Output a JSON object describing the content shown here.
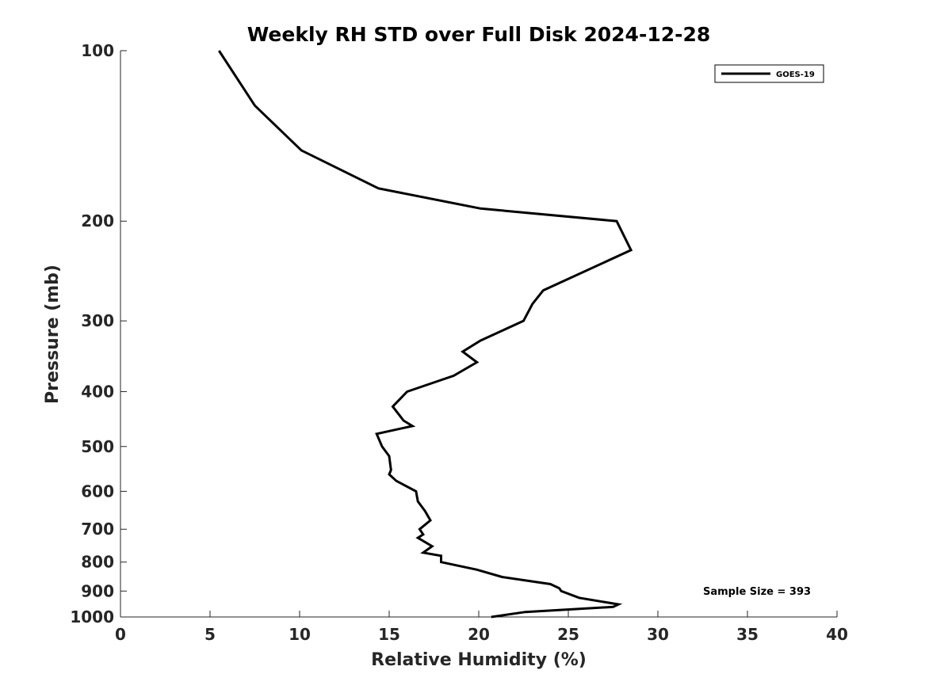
{
  "chart_data": {
    "type": "line",
    "title": "Weekly RH STD over Full Disk 2024-12-28",
    "xlabel": "Relative Humidity (%)",
    "ylabel": "Pressure (mb)",
    "xlim": [
      0,
      40
    ],
    "ylim": [
      100,
      1000
    ],
    "yscale": "log",
    "yreversed": true,
    "grid": false,
    "x_ticks": [
      0,
      5,
      10,
      15,
      20,
      25,
      30,
      35,
      40
    ],
    "x_tick_labels": [
      "0",
      "5",
      "10",
      "15",
      "20",
      "25",
      "30",
      "35",
      "40"
    ],
    "y_ticks": [
      100,
      200,
      300,
      400,
      500,
      600,
      700,
      800,
      900,
      1000
    ],
    "y_tick_labels": [
      "100",
      "200",
      "300",
      "400",
      "500",
      "600",
      "700",
      "800",
      "900",
      "1000"
    ],
    "legend": {
      "position": "top-right",
      "entries": [
        "GOES-19"
      ]
    },
    "annotation": "Sample Size = 393",
    "series": [
      {
        "name": "GOES-19",
        "color": "#000000",
        "points": [
          [
            5.5,
            100
          ],
          [
            7.5,
            125
          ],
          [
            10.1,
            150
          ],
          [
            14.4,
            175
          ],
          [
            20.1,
            190
          ],
          [
            27.7,
            200
          ],
          [
            28.5,
            225
          ],
          [
            23.6,
            265
          ],
          [
            23.0,
            280
          ],
          [
            22.5,
            300
          ],
          [
            20.1,
            325
          ],
          [
            19.1,
            340
          ],
          [
            19.9,
            355
          ],
          [
            18.6,
            375
          ],
          [
            16.0,
            400
          ],
          [
            15.2,
            425
          ],
          [
            15.8,
            450
          ],
          [
            16.3,
            460
          ],
          [
            14.3,
            475
          ],
          [
            14.6,
            500
          ],
          [
            15.0,
            520
          ],
          [
            15.1,
            550
          ],
          [
            15.0,
            560
          ],
          [
            15.4,
            575
          ],
          [
            16.5,
            600
          ],
          [
            16.6,
            625
          ],
          [
            17.0,
            650
          ],
          [
            17.3,
            675
          ],
          [
            16.7,
            700
          ],
          [
            16.9,
            715
          ],
          [
            16.6,
            725
          ],
          [
            17.4,
            750
          ],
          [
            16.9,
            770
          ],
          [
            17.9,
            780
          ],
          [
            17.9,
            800
          ],
          [
            19.9,
            825
          ],
          [
            21.3,
            850
          ],
          [
            24.0,
            875
          ],
          [
            24.5,
            890
          ],
          [
            24.6,
            900
          ],
          [
            25.6,
            925
          ],
          [
            27.8,
            950
          ],
          [
            27.5,
            960
          ],
          [
            22.6,
            980
          ],
          [
            20.7,
            1000
          ]
        ]
      }
    ]
  }
}
